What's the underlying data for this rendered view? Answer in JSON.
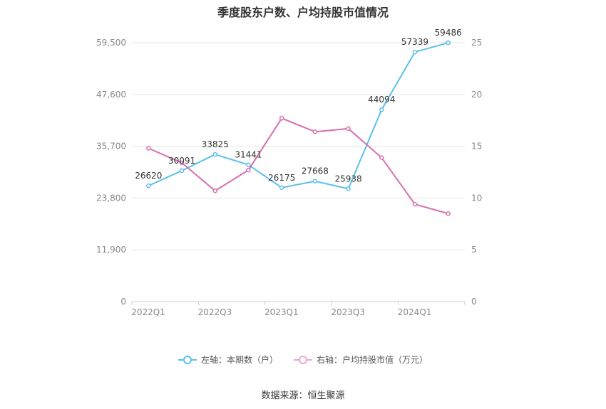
{
  "title": "季度股东户数、户均持股市值情况",
  "source": "数据来源：恒生聚源",
  "legend": {
    "left": "左轴：本期数（户）",
    "right": "右轴：户均持股市值（万元）"
  },
  "colors": {
    "left_series": "#5bc0eb",
    "right_series": "#d670b0",
    "grid": "#e6e6e6",
    "axis_text": "#888888"
  },
  "chart_data": {
    "type": "line",
    "title": "季度股东户数、户均持股市值情况",
    "x": [
      "2022Q1",
      "2022Q2",
      "2022Q3",
      "2022Q4",
      "2023Q1",
      "2023Q2",
      "2023Q3",
      "2023Q4",
      "2024Q1",
      "2024Q2"
    ],
    "x_tick_labels": [
      "2022Q1",
      "",
      "2022Q3",
      "",
      "2023Q1",
      "",
      "2023Q3",
      "",
      "2024Q1",
      ""
    ],
    "y_left": {
      "min": 0,
      "max": 59500,
      "ticks": [
        0,
        11900,
        23800,
        35700,
        47600,
        59500
      ],
      "tick_labels": [
        "0",
        "11,900",
        "23,800",
        "35,700",
        "47,600",
        "59,500"
      ]
    },
    "y_right": {
      "min": 0,
      "max": 25,
      "ticks": [
        0,
        5,
        10,
        15,
        20,
        25
      ],
      "tick_labels": [
        "0",
        "5",
        "10",
        "15",
        "20",
        "25"
      ]
    },
    "grid": true,
    "legend_position": "bottom",
    "series": [
      {
        "name": "左轴：本期数（户）",
        "axis": "left",
        "values": [
          26620,
          30091,
          33825,
          31441,
          26175,
          27668,
          25938,
          44094,
          57339,
          59486
        ],
        "labels": [
          "26620",
          "30091",
          "33825",
          "31441",
          "26175",
          "27668",
          "25938",
          "44094",
          "57339",
          "59486"
        ]
      },
      {
        "name": "右轴：户均持股市值（万元）",
        "axis": "right",
        "values": [
          14.8,
          13.4,
          10.7,
          12.7,
          17.7,
          16.4,
          16.7,
          13.9,
          9.4,
          8.5
        ]
      }
    ]
  }
}
